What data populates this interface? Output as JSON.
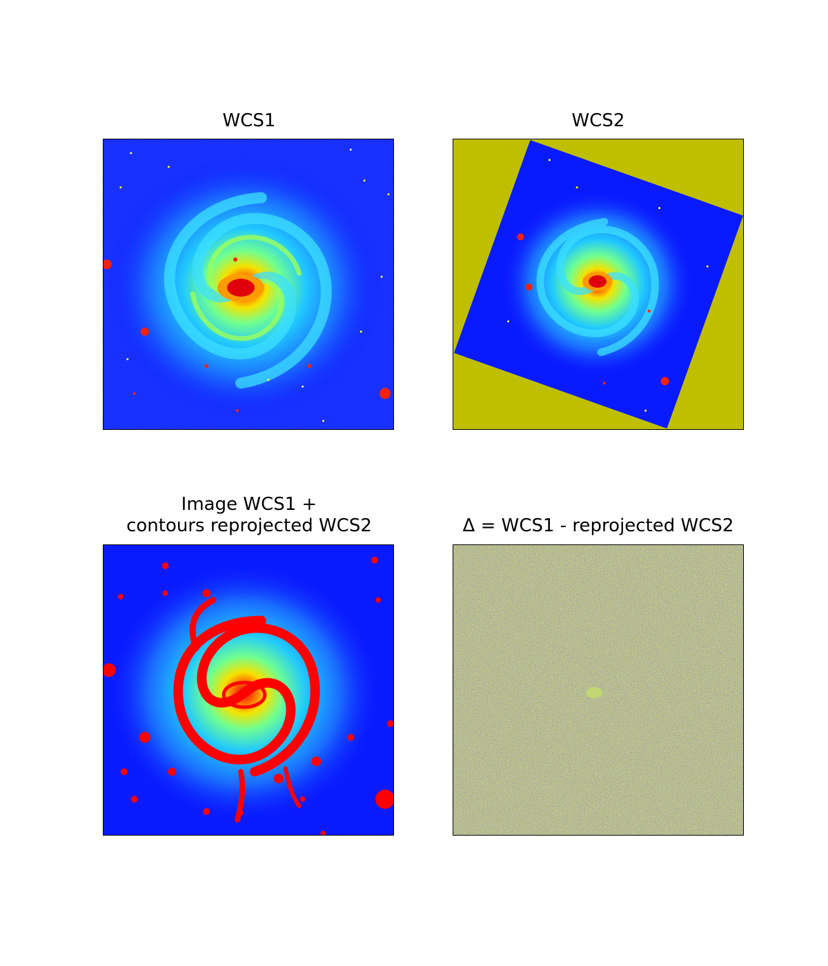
{
  "panels": [
    {
      "title": "WCS1"
    },
    {
      "title": "WCS2"
    },
    {
      "title_line1": "Image WCS1 +",
      "title_line2": "contours reprojected WCS2"
    },
    {
      "title": "Δ = WCS1 - reprojected WCS2"
    }
  ],
  "colors": {
    "background_blue": "#0a1aff",
    "blank_fill": "#bfbf00",
    "core_red": "#e0000a",
    "contour_red": "#ff0000"
  }
}
